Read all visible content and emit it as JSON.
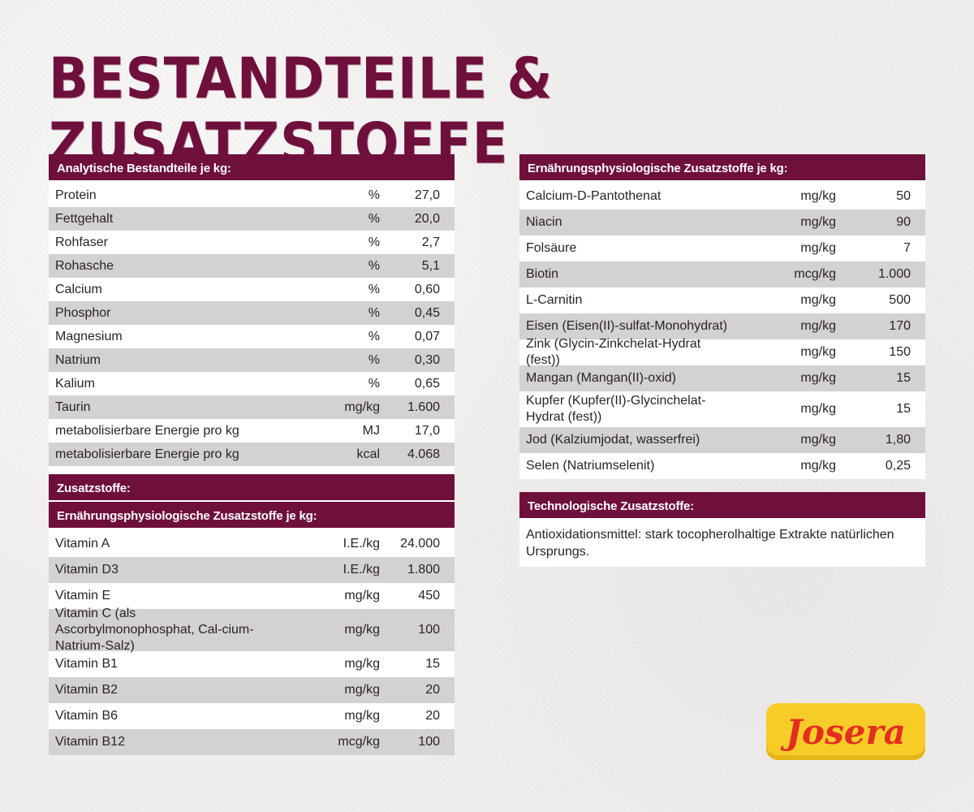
{
  "title": "BESTANDTEILE & ZUSATZSTOFFE",
  "colors": {
    "header_bg": "#6f0f3c",
    "alt_row": "#d3d1d2",
    "logo_bg": "#f7cc27",
    "logo_text": "#e42e1f"
  },
  "analytic": {
    "header": "Analytische Bestandteile je kg:",
    "rows": [
      {
        "name": "Protein",
        "unit": "%",
        "value": "27,0"
      },
      {
        "name": "Fettgehalt",
        "unit": "%",
        "value": "20,0"
      },
      {
        "name": "Rohfaser",
        "unit": "%",
        "value": "2,7"
      },
      {
        "name": "Rohasche",
        "unit": "%",
        "value": "5,1"
      },
      {
        "name": "Calcium",
        "unit": "%",
        "value": "0,60"
      },
      {
        "name": "Phosphor",
        "unit": "%",
        "value": "0,45"
      },
      {
        "name": "Magnesium",
        "unit": "%",
        "value": "0,07"
      },
      {
        "name": "Natrium",
        "unit": "%",
        "value": "0,30"
      },
      {
        "name": "Kalium",
        "unit": "%",
        "value": "0,65"
      },
      {
        "name": "Taurin",
        "unit": "mg/kg",
        "value": "1.600"
      },
      {
        "name": "metabolisierbare Energie pro kg",
        "unit": "MJ",
        "value": "17,0"
      },
      {
        "name": "metabolisierbare Energie pro kg",
        "unit": "kcal",
        "value": "4.068"
      }
    ]
  },
  "additives": {
    "header": "Zusatzstoffe:",
    "subheader": "Ernährungsphysiologische Zusatzstoffe je kg:",
    "rows": [
      {
        "name": "Vitamin A",
        "unit": "I.E./kg",
        "value": "24.000"
      },
      {
        "name": "Vitamin D3",
        "unit": "I.E./kg",
        "value": "1.800"
      },
      {
        "name": "Vitamin E",
        "unit": "mg/kg",
        "value": "450"
      },
      {
        "name": "Vitamin C (als Ascorbylmonophosphat, Cal-cium-Natrium-Salz)",
        "unit": "mg/kg",
        "value": "100"
      },
      {
        "name": "Vitamin B1",
        "unit": "mg/kg",
        "value": "15"
      },
      {
        "name": "Vitamin B2",
        "unit": "mg/kg",
        "value": "20"
      },
      {
        "name": "Vitamin B6",
        "unit": "mg/kg",
        "value": "20"
      },
      {
        "name": "Vitamin B12",
        "unit": "mcg/kg",
        "value": "100"
      }
    ]
  },
  "nutritional": {
    "header": "Ernährungsphysiologische Zusatzstoffe je kg:",
    "rows": [
      {
        "name": "Calcium-D-Pantothenat",
        "unit": "mg/kg",
        "value": "50"
      },
      {
        "name": "Niacin",
        "unit": "mg/kg",
        "value": "90"
      },
      {
        "name": "Folsäure",
        "unit": "mg/kg",
        "value": "7"
      },
      {
        "name": "Biotin",
        "unit": "mcg/kg",
        "value": "1.000"
      },
      {
        "name": "L-Carnitin",
        "unit": "mg/kg",
        "value": "500"
      },
      {
        "name": "Eisen (Eisen(II)-sulfat-Monohydrat)",
        "unit": "mg/kg",
        "value": "170"
      },
      {
        "name": "Zink (Glycin-Zinkchelat-Hydrat (fest))",
        "unit": "mg/kg",
        "value": "150"
      },
      {
        "name": "Mangan (Mangan(II)-oxid)",
        "unit": "mg/kg",
        "value": "15"
      },
      {
        "name": "Kupfer (Kupfer(II)-Glycinchelat-Hydrat (fest))",
        "unit": "mg/kg",
        "value": "15"
      },
      {
        "name": "Jod (Kalziumjodat, wasserfrei)",
        "unit": "mg/kg",
        "value": "1,80"
      },
      {
        "name": "Selen (Natriumselenit)",
        "unit": "mg/kg",
        "value": "0,25"
      }
    ]
  },
  "technological": {
    "header": "Technologische Zusatzstoffe:",
    "text": "Antioxidationsmittel: stark tocopherolhaltige Extrakte natürlichen Ursprungs."
  },
  "logo": {
    "text": "Josera"
  }
}
